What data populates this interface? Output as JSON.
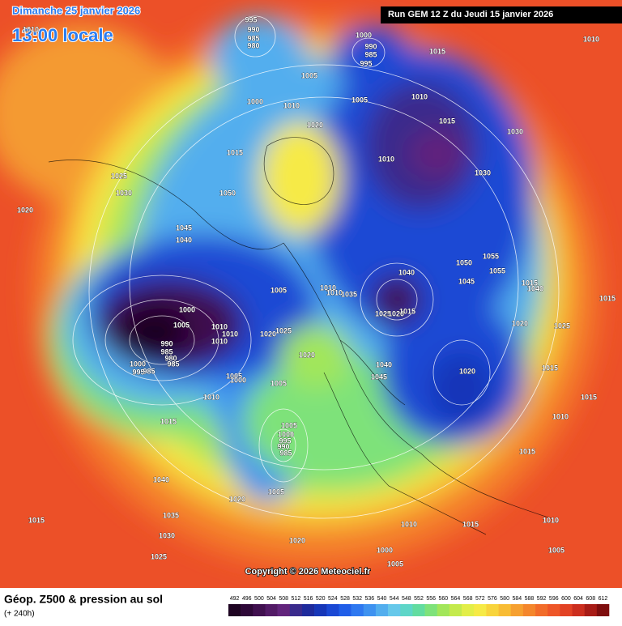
{
  "header": {
    "date": "Dimanche 25 janvier 2026",
    "time": "13:00 locale",
    "run": "Run GEM 12 Z du Jeudi 15 janvier 2026"
  },
  "copyright": "Copyright © 2026 Meteociel.fr",
  "legend": {
    "title": "Géop. Z500 & pression au sol",
    "lead": "(+ 240h)",
    "values": [
      492,
      496,
      500,
      504,
      508,
      512,
      516,
      520,
      524,
      528,
      532,
      536,
      540,
      544,
      548,
      552,
      556,
      560,
      564,
      568,
      572,
      576,
      580,
      584,
      588,
      592,
      596,
      600,
      604,
      608,
      612
    ],
    "colors": [
      "#1e0422",
      "#2e0838",
      "#40104f",
      "#521a66",
      "#62247c",
      "#3a2a8c",
      "#1e2a9c",
      "#1636b8",
      "#1a48d4",
      "#205ee8",
      "#2e78f0",
      "#3e92f0",
      "#52aeee",
      "#66c8ea",
      "#5ed6c8",
      "#62dca0",
      "#7ee27a",
      "#a2e65a",
      "#c4ea4c",
      "#e2ee48",
      "#f6ea46",
      "#f8d43c",
      "#f8bc34",
      "#f6a030",
      "#f4862c",
      "#f26c2a",
      "#ee5628",
      "#e24224",
      "#cc2e1e",
      "#a81c16",
      "#7e0e0e"
    ]
  },
  "isobar_labels": [
    995,
    990,
    985,
    980,
    1010,
    1000,
    990,
    985,
    995,
    1015,
    1010,
    1005,
    1000,
    1010,
    1005,
    1010,
    1015,
    1020,
    1030,
    1015,
    1010,
    1030,
    1025,
    1030,
    1050,
    1020,
    1045,
    1040,
    1055,
    1050,
    1040,
    1055,
    1045,
    1015,
    1040,
    1005,
    1010,
    1010,
    1035,
    1015,
    1000,
    1025,
    1020,
    1015,
    1005,
    1010,
    1010,
    1020,
    1025,
    1010,
    1020,
    1025,
    990,
    985,
    980,
    985,
    1020,
    1040,
    1000,
    995,
    985,
    1045,
    1020,
    1015,
    1005,
    1000,
    1005,
    1010,
    1015,
    1015,
    1010,
    1005,
    1000,
    995,
    990,
    985,
    1015,
    1040,
    1020,
    1005,
    1035,
    1010,
    1015,
    1030,
    1010,
    1015,
    1020,
    1000,
    1025,
    1005,
    1005
  ]
}
